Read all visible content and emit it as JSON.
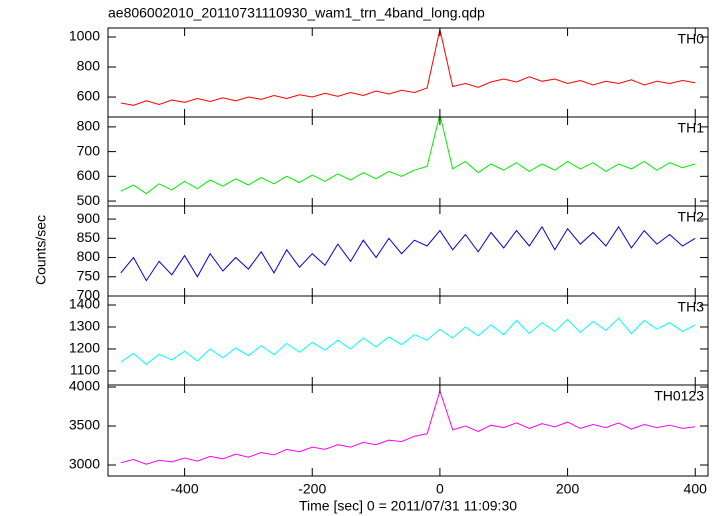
{
  "title": "ae806002010_20110731110930_wam1_trn_4band_long.qdp",
  "ylabel": "Counts/sec",
  "xlabel": "Time [sec] 0 = 2011/07/31 11:09:30",
  "chart_data": [
    {
      "type": "line",
      "label": "TH0",
      "color": "#ff0000",
      "x": [
        -500,
        -480,
        -460,
        -440,
        -420,
        -400,
        -380,
        -360,
        -340,
        -320,
        -300,
        -280,
        -260,
        -240,
        -220,
        -200,
        -180,
        -160,
        -140,
        -120,
        -100,
        -80,
        -60,
        -40,
        -20,
        0,
        20,
        40,
        60,
        80,
        100,
        120,
        140,
        160,
        180,
        200,
        220,
        240,
        260,
        280,
        300,
        320,
        340,
        360,
        380,
        400
      ],
      "values": [
        560,
        545,
        575,
        550,
        580,
        565,
        590,
        570,
        595,
        575,
        600,
        585,
        610,
        590,
        615,
        600,
        625,
        605,
        630,
        610,
        640,
        620,
        645,
        630,
        660,
        1050,
        670,
        690,
        665,
        700,
        720,
        700,
        735,
        705,
        720,
        690,
        710,
        680,
        705,
        690,
        715,
        680,
        705,
        690,
        710,
        695
      ],
      "xlim": [
        -520,
        420
      ],
      "xticks": [
        -400,
        -200,
        0,
        200,
        400
      ],
      "ylim": [
        467,
        1060
      ],
      "yticks": [
        600,
        800,
        1000
      ]
    },
    {
      "type": "line",
      "label": "TH1",
      "color": "#00ee00",
      "x": [
        -500,
        -480,
        -460,
        -440,
        -420,
        -400,
        -380,
        -360,
        -340,
        -320,
        -300,
        -280,
        -260,
        -240,
        -220,
        -200,
        -180,
        -160,
        -140,
        -120,
        -100,
        -80,
        -60,
        -40,
        -20,
        0,
        20,
        40,
        60,
        80,
        100,
        120,
        140,
        160,
        180,
        200,
        220,
        240,
        260,
        280,
        300,
        320,
        340,
        360,
        380,
        400
      ],
      "values": [
        540,
        565,
        530,
        570,
        545,
        580,
        550,
        585,
        560,
        590,
        565,
        595,
        570,
        600,
        575,
        605,
        580,
        610,
        585,
        615,
        590,
        620,
        600,
        625,
        640,
        850,
        630,
        660,
        615,
        650,
        625,
        655,
        620,
        650,
        625,
        660,
        630,
        655,
        620,
        650,
        630,
        660,
        625,
        655,
        635,
        650
      ],
      "xlim": [
        -520,
        420
      ],
      "xticks": [
        -400,
        -200,
        0,
        200,
        400
      ],
      "ylim": [
        480,
        840
      ],
      "yticks": [
        500,
        600,
        700,
        800
      ]
    },
    {
      "type": "line",
      "label": "TH2",
      "color": "#0000dd",
      "x": [
        -500,
        -480,
        -460,
        -440,
        -420,
        -400,
        -380,
        -360,
        -340,
        -320,
        -300,
        -280,
        -260,
        -240,
        -220,
        -200,
        -180,
        -160,
        -140,
        -120,
        -100,
        -80,
        -60,
        -40,
        -20,
        0,
        20,
        40,
        60,
        80,
        100,
        120,
        140,
        160,
        180,
        200,
        220,
        240,
        260,
        280,
        300,
        320,
        340,
        360,
        380,
        400
      ],
      "values": [
        760,
        800,
        740,
        790,
        755,
        805,
        750,
        810,
        765,
        800,
        770,
        815,
        760,
        820,
        775,
        810,
        780,
        835,
        790,
        845,
        800,
        850,
        810,
        845,
        830,
        870,
        820,
        860,
        815,
        865,
        825,
        870,
        830,
        880,
        820,
        875,
        835,
        865,
        830,
        880,
        825,
        870,
        835,
        860,
        830,
        850
      ],
      "xlim": [
        -520,
        420
      ],
      "xticks": [
        -400,
        -200,
        0,
        200,
        400
      ],
      "ylim": [
        700,
        934
      ],
      "yticks": [
        700,
        750,
        800,
        850,
        900
      ]
    },
    {
      "type": "line",
      "label": "TH3",
      "color": "#00ffff",
      "x": [
        -500,
        -480,
        -460,
        -440,
        -420,
        -400,
        -380,
        -360,
        -340,
        -320,
        -300,
        -280,
        -260,
        -240,
        -220,
        -200,
        -180,
        -160,
        -140,
        -120,
        -100,
        -80,
        -60,
        -40,
        -20,
        0,
        20,
        40,
        60,
        80,
        100,
        120,
        140,
        160,
        180,
        200,
        220,
        240,
        260,
        280,
        300,
        320,
        340,
        360,
        380,
        400
      ],
      "values": [
        1140,
        1180,
        1130,
        1175,
        1150,
        1190,
        1145,
        1200,
        1160,
        1205,
        1170,
        1215,
        1175,
        1225,
        1185,
        1230,
        1195,
        1240,
        1200,
        1250,
        1210,
        1255,
        1220,
        1265,
        1240,
        1290,
        1250,
        1300,
        1260,
        1310,
        1265,
        1330,
        1270,
        1320,
        1280,
        1335,
        1275,
        1325,
        1285,
        1340,
        1270,
        1330,
        1290,
        1320,
        1280,
        1310
      ],
      "xlim": [
        -520,
        420
      ],
      "xticks": [
        -400,
        -200,
        0,
        200,
        400
      ],
      "ylim": [
        1036,
        1441
      ],
      "yticks": [
        1100,
        1200,
        1300,
        1400
      ]
    },
    {
      "type": "line",
      "label": "TH0123",
      "color": "#ff00ff",
      "x": [
        -500,
        -480,
        -460,
        -440,
        -420,
        -400,
        -380,
        -360,
        -340,
        -320,
        -300,
        -280,
        -260,
        -240,
        -220,
        -200,
        -180,
        -160,
        -140,
        -120,
        -100,
        -80,
        -60,
        -40,
        -20,
        0,
        20,
        40,
        60,
        80,
        100,
        120,
        140,
        160,
        180,
        200,
        220,
        240,
        260,
        280,
        300,
        320,
        340,
        360,
        380,
        400
      ],
      "values": [
        3030,
        3070,
        3010,
        3060,
        3040,
        3090,
        3050,
        3110,
        3080,
        3140,
        3100,
        3160,
        3130,
        3200,
        3170,
        3230,
        3200,
        3260,
        3230,
        3290,
        3260,
        3320,
        3300,
        3370,
        3400,
        3950,
        3450,
        3500,
        3430,
        3510,
        3480,
        3540,
        3470,
        3530,
        3490,
        3550,
        3470,
        3520,
        3480,
        3540,
        3460,
        3520,
        3480,
        3510,
        3470,
        3490
      ],
      "xlim": [
        -520,
        420
      ],
      "xticks": [
        -400,
        -200,
        0,
        200,
        400
      ],
      "ylim": [
        2859,
        4026
      ],
      "yticks": [
        3000,
        3500,
        4000
      ]
    }
  ]
}
